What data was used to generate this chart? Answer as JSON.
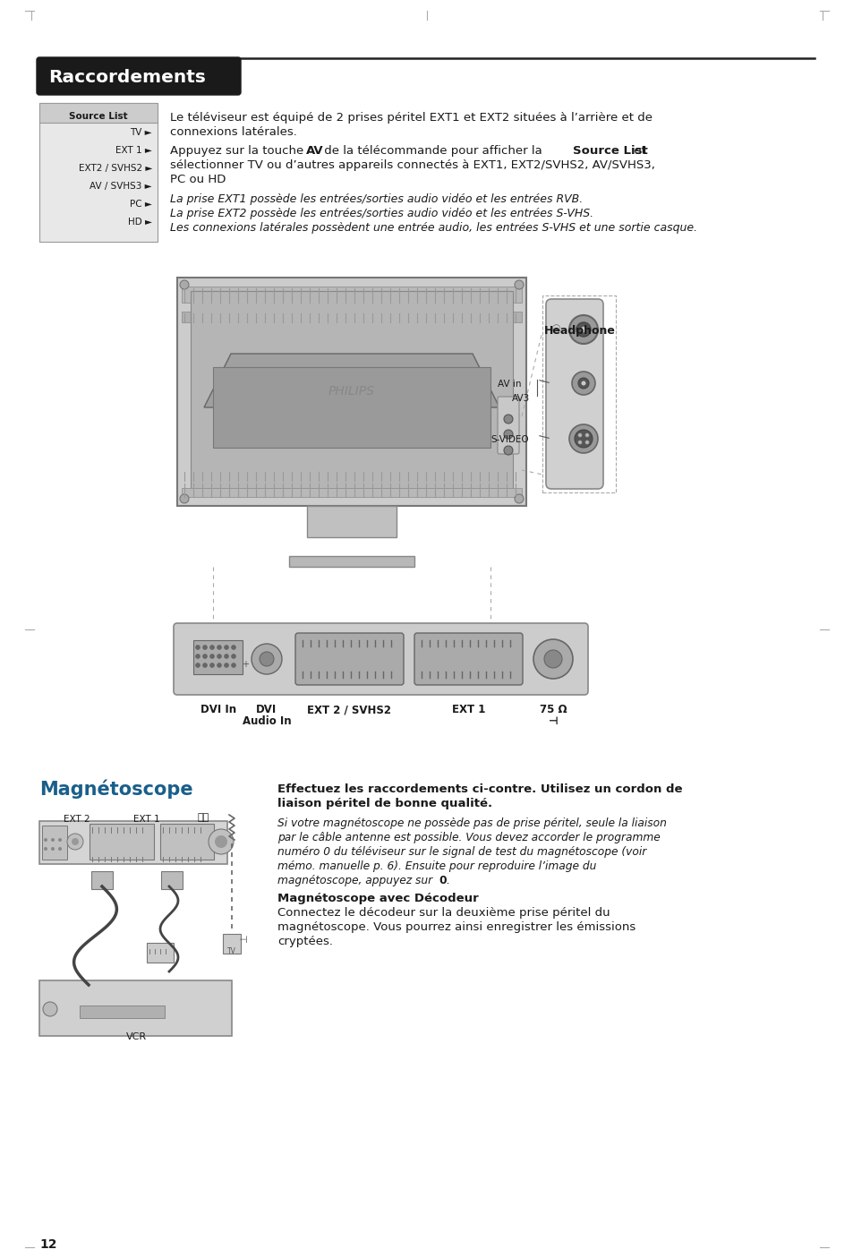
{
  "bg_color": "#ffffff",
  "page_number": "12",
  "title": "Raccordements",
  "title_bg": "#1a1a1a",
  "title_text_color": "#ffffff",
  "source_list_header": "Source List",
  "source_list_items": [
    "TV ►",
    "EXT 1 ►",
    "EXT2 / SVHS2 ►",
    "AV / SVHS3 ►",
    "PC ►",
    "HD ►"
  ],
  "para1_line1": "Le téléviseur est équipé de 2 prises péritel EXT1 et EXT2 situées à l’arrière et de",
  "para1_line2": "connexions latérales.",
  "para2_pre_av": "Appuyez sur la touche ",
  "para2_av": "AV",
  "para2_post_av": " de la télécommande pour afficher la ",
  "para2_sourcelist": "Source List",
  "para2_end": " et",
  "para2_line2": "sélectionner TV ou d’autres appareils connectés à EXT1, EXT2/SVHS2, AV/SVHS3,",
  "para2_line3": "PC ou HD",
  "italic1": "La prise EXT1 possède les entrées/sorties audio vidéo et les entrées RVB.",
  "italic2": "La prise EXT2 possède les entrées/sorties audio vidéo et les entrées S-VHS.",
  "italic3": "Les connexions latérales possèdent une entrée audio, les entrées S-VHS et une sortie casque.",
  "headphone_label": "Headphone",
  "av_in_label": "AV in",
  "av3_label": "AV3",
  "svideo_label": "S-VIDEO",
  "section2_title": "Magnétoscope",
  "section2_title_color": "#1a5f8a",
  "s2_bold1": "Effectuez les raccordements ci-contre. Utilisez un cordon de",
  "s2_bold2": "liaison péritel de bonne qualité.",
  "s2_it1": "Si votre magnétoscope ne possède pas de prise péritel, seule la liaison",
  "s2_it2": "par le câble antenne est possible. Vous devez accorder le programme",
  "s2_it3": "numéro 0 du téléviseur sur le signal de test du magnétoscope (voir",
  "s2_it4": "mémo. manuelle p. 6). Ensuite pour reproduire l’image du",
  "s2_it5_pre": "magnétoscope, appuyez sur ",
  "s2_it5_bold": "0",
  "s2_it5_post": ".",
  "s2_subhead": "Magnétoscope avec Décodeur",
  "s2_p3_1": "Connectez le décodeur sur la deuxième prise péritel du",
  "s2_p3_2": "magnétoscope. Vous pourrez ainsi enregistrer les émissions",
  "s2_p3_3": "cryptées.",
  "vcr_ext2_label": "EXT 2",
  "vcr_ext1_label": "EXT 1"
}
